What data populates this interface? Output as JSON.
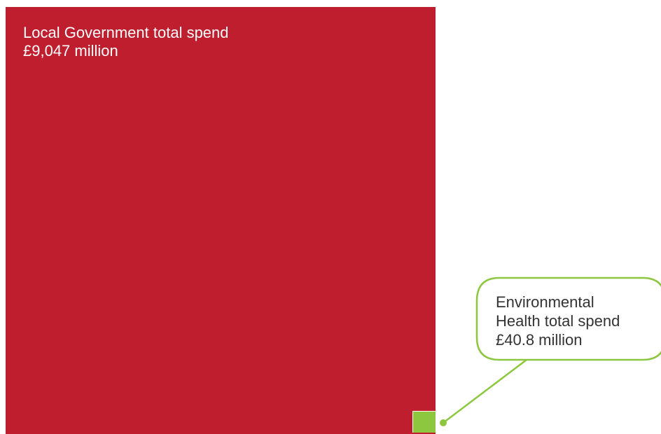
{
  "chart_data": {
    "type": "area-comparison",
    "items": [
      {
        "name": "Local Government total spend",
        "value": 9047,
        "value_label": "£9,047 million",
        "color": "#be1e2d"
      },
      {
        "name": "Environmental Health total spend",
        "value": 40.8,
        "value_label": "£40.8 million",
        "color": "#8dc63f"
      }
    ]
  },
  "labels": {
    "big_line1": "Local Government total spend",
    "big_line2": "£9,047 million",
    "callout_line1": "Environmental",
    "callout_line2": "Health total spend",
    "callout_line3": "£40.8 million"
  },
  "colors": {
    "callout_border": "#8dc63f",
    "callout_text": "#333333",
    "background": "#ffffff"
  }
}
